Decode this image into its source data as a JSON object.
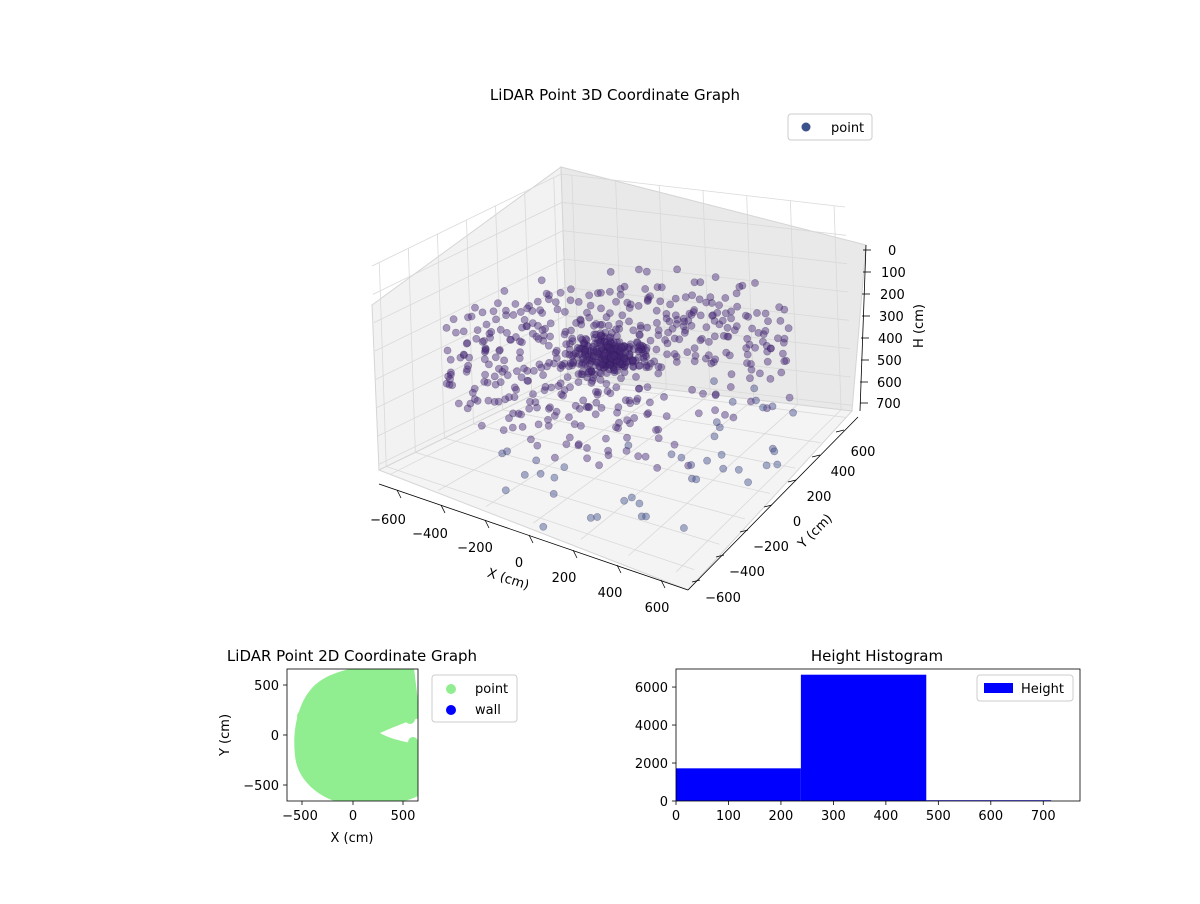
{
  "chart_data": [
    {
      "type": "scatter",
      "projection": "3d",
      "title": "LiDAR Point 3D Coordinate Graph",
      "xlabel": "X (cm)",
      "ylabel": "Y (cm)",
      "zlabel": "H (cm)",
      "xticks": [
        "−600",
        "−400",
        "−200",
        "0",
        "200",
        "400",
        "600"
      ],
      "yticks": [
        "−600",
        "−400",
        "−200",
        "0",
        "200",
        "400",
        "600"
      ],
      "zticks": [
        "0",
        "100",
        "200",
        "300",
        "400",
        "500",
        "600",
        "700"
      ],
      "xlim": [
        -650,
        650
      ],
      "ylim": [
        -650,
        650
      ],
      "zlim": [
        0,
        720
      ],
      "z_inverted": true,
      "grid": true,
      "legend": {
        "position": "upper right",
        "entries": [
          {
            "label": "point",
            "color": "#3b528b"
          }
        ]
      },
      "series": [
        {
          "name": "point",
          "color_map": "viridis",
          "color_low": "#440154",
          "color_high": "#3b528b",
          "structure": "points on concentric rings around the origin, ring radii roughly 150–650 cm, heights mostly 250–480 cm with sparse outliers up to ~720 cm"
        }
      ]
    },
    {
      "type": "scatter",
      "title": "LiDAR Point 2D Coordinate Graph",
      "xlabel": "X (cm)",
      "ylabel": "Y (cm)",
      "xticks": [
        "−500",
        "0",
        "500"
      ],
      "yticks": [
        "−500",
        "0",
        "500"
      ],
      "xlim": [
        -650,
        650
      ],
      "ylim": [
        -650,
        650
      ],
      "legend": {
        "position": "outside right",
        "entries": [
          {
            "label": "point",
            "color": "#90ee90"
          },
          {
            "label": "wall",
            "color": "#0000ff"
          }
        ]
      },
      "series": [
        {
          "name": "point",
          "color": "#90ee90",
          "structure": "dense disk of points, radius ~650 cm, with a notch cut in on the right side near Y = 0"
        },
        {
          "name": "wall",
          "color": "#0000ff",
          "values": []
        }
      ]
    },
    {
      "type": "bar",
      "title": "Height Histogram",
      "xlabel": "",
      "ylabel": "",
      "xticks": [
        "0",
        "100",
        "200",
        "300",
        "400",
        "500",
        "600",
        "700"
      ],
      "yticks": [
        "0",
        "2000",
        "4000",
        "6000"
      ],
      "xlim": [
        0,
        770
      ],
      "ylim": [
        0,
        6950
      ],
      "bins": [
        {
          "from": 0,
          "to": 238,
          "count": 1720
        },
        {
          "from": 238,
          "to": 477,
          "count": 6650
        },
        {
          "from": 477,
          "to": 715,
          "count": 40
        }
      ],
      "legend": {
        "position": "upper right",
        "entries": [
          {
            "label": "Height",
            "color": "#0000ff"
          }
        ]
      },
      "color": "#0000ff"
    }
  ]
}
